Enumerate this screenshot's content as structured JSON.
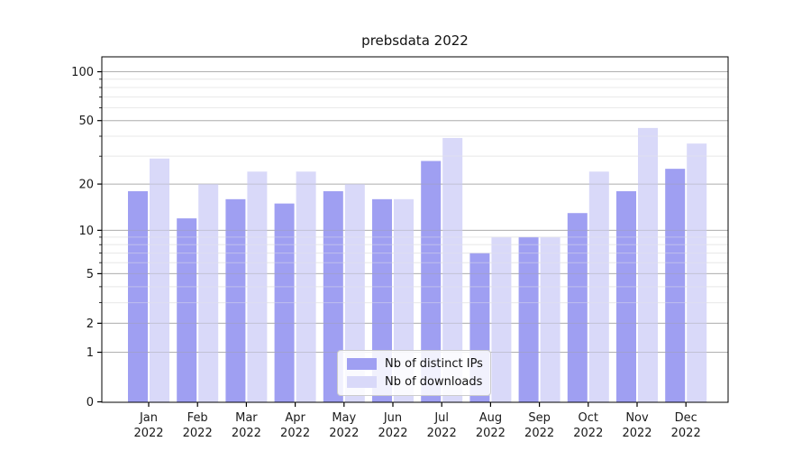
{
  "chart_data": {
    "type": "bar",
    "title": "prebsdata 2022",
    "categories": [
      "Jan 2022",
      "Feb 2022",
      "Mar 2022",
      "Apr 2022",
      "May 2022",
      "Jun 2022",
      "Jul 2022",
      "Aug 2022",
      "Sep 2022",
      "Oct 2022",
      "Nov 2022",
      "Dec 2022"
    ],
    "series": [
      {
        "name": "Nb of distinct IPs",
        "color": "#9f9ff2",
        "values": [
          18,
          12,
          16,
          15,
          18,
          16,
          28,
          7,
          9,
          13,
          18,
          25
        ]
      },
      {
        "name": "Nb of downloads",
        "color": "#d9d9f9",
        "values": [
          29,
          20,
          24,
          24,
          20,
          16,
          39,
          9,
          9,
          24,
          45,
          36
        ]
      }
    ],
    "xlabel": "",
    "ylabel": "",
    "yscale": "symlog",
    "ylim": [
      0,
      124
    ],
    "yticks": [
      0,
      1,
      2,
      5,
      10,
      20,
      50,
      100
    ],
    "yticks_minor": [
      3,
      4,
      6,
      7,
      8,
      9,
      30,
      40,
      60,
      70,
      80,
      90
    ],
    "grid": "horizontal",
    "legend_position": "lower center"
  },
  "colors": {
    "axis": "#000000",
    "grid_major": "#bdbdbd",
    "grid_minor": "#ebebeb",
    "tick_label": "#1a1a1a"
  }
}
